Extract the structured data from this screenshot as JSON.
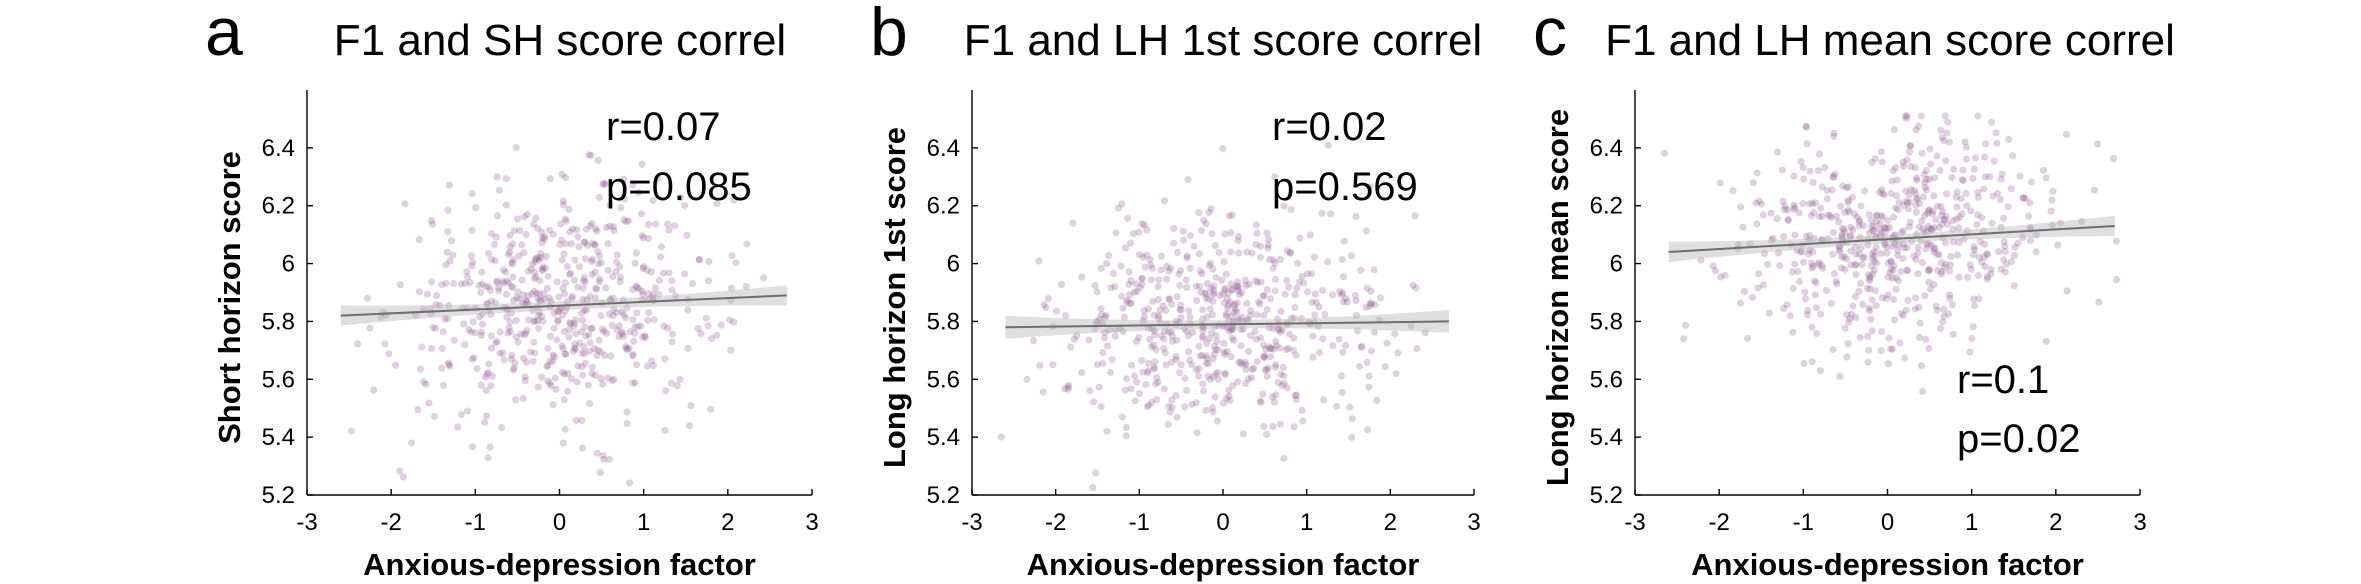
{
  "chart_data": [
    {
      "type": "scatter",
      "panel": "a",
      "title": "F1 and SH score correl",
      "xlabel": "Anxious-depression factor",
      "ylabel": "Short horizon score",
      "xlim": [
        -3,
        3
      ],
      "ylim": [
        5.2,
        6.6
      ],
      "xticks": [
        -3,
        -2,
        -1,
        0,
        1,
        2,
        3
      ],
      "yticks": [
        5.2,
        5.4,
        5.6,
        5.8,
        6,
        6.2,
        6.4
      ],
      "x_tick_labels": [
        "-3",
        "-2",
        "-1",
        "0",
        "1",
        "2",
        "3"
      ],
      "y_tick_labels": [
        "5.2",
        "5.4",
        "5.6",
        "5.8",
        "6",
        "6.2",
        "6.4"
      ],
      "stats": {
        "r": "r=0.07",
        "p": "p=0.085"
      },
      "fit": {
        "x": [
          -2.6,
          2.7
        ],
        "y": [
          5.82,
          5.89
        ],
        "ci_half_width": [
          0.035,
          0.015,
          0.035
        ]
      },
      "scatter_center": 5.86,
      "scatter_sd": 0.2,
      "n_points": 600,
      "colors": {
        "points": "#8e5a8f",
        "fit": "#6f6f6f",
        "ci": "#b7b7b7"
      }
    },
    {
      "type": "scatter",
      "panel": "b",
      "title": "F1 and LH 1st score correl",
      "xlabel": "Anxious-depression factor",
      "ylabel": "Long horizon 1st score",
      "xlim": [
        -3,
        3
      ],
      "ylim": [
        5.2,
        6.6
      ],
      "xticks": [
        -3,
        -2,
        -1,
        0,
        1,
        2,
        3
      ],
      "yticks": [
        5.2,
        5.4,
        5.6,
        5.8,
        6,
        6.2,
        6.4
      ],
      "x_tick_labels": [
        "-3",
        "-2",
        "-1",
        "0",
        "1",
        "2",
        "3"
      ],
      "y_tick_labels": [
        "5.2",
        "5.4",
        "5.6",
        "5.8",
        "6",
        "6.2",
        "6.4"
      ],
      "stats": {
        "r": "r=0.02",
        "p": "p=0.569"
      },
      "fit": {
        "x": [
          -2.6,
          2.7
        ],
        "y": [
          5.78,
          5.8
        ],
        "ci_half_width": [
          0.04,
          0.015,
          0.04
        ]
      },
      "scatter_center": 5.79,
      "scatter_sd": 0.19,
      "n_points": 600,
      "colors": {
        "points": "#8e5a8f",
        "fit": "#6f6f6f",
        "ci": "#b7b7b7"
      }
    },
    {
      "type": "scatter",
      "panel": "c",
      "title": "F1 and LH mean score correl",
      "xlabel": "Anxious-depression factor",
      "ylabel": "Long horizon mean score",
      "xlim": [
        -3,
        3
      ],
      "ylim": [
        5.2,
        6.6
      ],
      "xticks": [
        -3,
        -2,
        -1,
        0,
        1,
        2,
        3
      ],
      "yticks": [
        5.2,
        5.4,
        5.6,
        5.8,
        6,
        6.2,
        6.4
      ],
      "x_tick_labels": [
        "-3",
        "-2",
        "-1",
        "0",
        "1",
        "2",
        "3"
      ],
      "y_tick_labels": [
        "5.2",
        "5.4",
        "5.6",
        "5.8",
        "6",
        "6.2",
        "6.4"
      ],
      "stats": {
        "r": "r=0.1",
        "p": "p=0.02"
      },
      "fit": {
        "x": [
          -2.6,
          2.7
        ],
        "y": [
          6.04,
          6.13
        ],
        "ci_half_width": [
          0.035,
          0.015,
          0.035
        ]
      },
      "scatter_center": 6.09,
      "scatter_sd": 0.19,
      "n_points": 600,
      "colors": {
        "points": "#8e5a8f",
        "fit": "#6f6f6f",
        "ci": "#b7b7b7"
      }
    }
  ]
}
